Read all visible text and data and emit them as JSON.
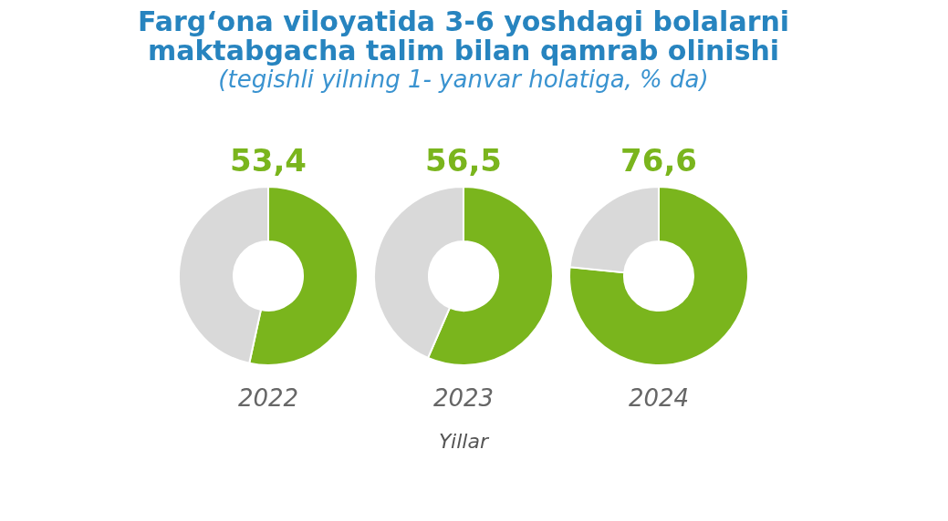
{
  "chart_data": [
    {
      "type": "donut",
      "title": "Farg‘ona viloyatida 3-6 yoshdagi bolalarni\nmaktabgacha talim bilan qamrab olinishi",
      "subtitle": "(tegishli yilning 1- yanvar holatiga, % da)",
      "categories": [
        null,
        null
      ],
      "values": [
        53.4,
        46.6
      ],
      "colors": [
        "#7ab51d",
        "#d9d9d9"
      ],
      "value_labels": [
        "53,4",
        null
      ],
      "xlabel": "2022"
    },
    {
      "type": "donut",
      "categories": [
        null,
        null
      ],
      "values": [
        56.5,
        43.5
      ],
      "colors": [
        "#7ab51d",
        "#d9d9d9"
      ],
      "value_labels": [
        "56,5",
        null
      ],
      "xlabel": "2023",
      "annotations": [
        "Yillar"
      ]
    },
    {
      "type": "donut",
      "categories": [
        null,
        null
      ],
      "values": [
        76.6,
        23.4
      ],
      "colors": [
        "#7ab51d",
        "#d9d9d9"
      ],
      "value_labels": [
        "76,6",
        null
      ],
      "xlabel": "2024"
    }
  ]
}
